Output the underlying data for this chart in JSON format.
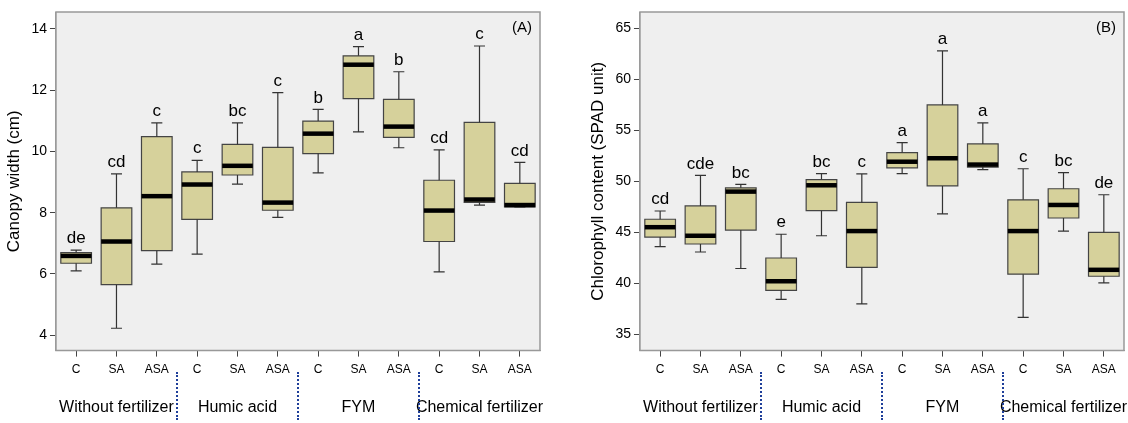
{
  "chart_data": [
    {
      "type": "box",
      "title": "(A)",
      "ylabel": "Canopy width (cm)",
      "categories": [
        "C",
        "SA",
        "ASA",
        "C",
        "SA",
        "ASA",
        "C",
        "SA",
        "ASA",
        "C",
        "SA",
        "ASA"
      ],
      "color": "#d6d19b",
      "ylim": [
        3.5,
        14.55
      ],
      "yticks": [
        4,
        6,
        8,
        10,
        12,
        14
      ],
      "legend": false,
      "boxes": [
        {
          "low": 6.1,
          "q1": 6.35,
          "median": 6.59,
          "q3": 6.7,
          "high": 6.78
        },
        {
          "low": 4.23,
          "q1": 5.65,
          "median": 7.06,
          "q3": 8.16,
          "high": 9.27
        },
        {
          "low": 6.32,
          "q1": 6.76,
          "median": 8.54,
          "q3": 10.48,
          "high": 10.93
        },
        {
          "low": 6.65,
          "q1": 7.78,
          "median": 8.92,
          "q3": 9.33,
          "high": 9.71
        },
        {
          "low": 8.93,
          "q1": 9.23,
          "median": 9.53,
          "q3": 10.23,
          "high": 10.93
        },
        {
          "low": 7.85,
          "q1": 8.08,
          "median": 8.33,
          "q3": 10.13,
          "high": 11.92
        },
        {
          "low": 9.3,
          "q1": 9.93,
          "median": 10.58,
          "q3": 10.99,
          "high": 11.37
        },
        {
          "low": 10.64,
          "q1": 11.72,
          "median": 12.83,
          "q3": 13.12,
          "high": 13.42
        },
        {
          "low": 10.12,
          "q1": 10.46,
          "median": 10.81,
          "q3": 11.7,
          "high": 12.6
        },
        {
          "low": 6.07,
          "q1": 7.06,
          "median": 8.07,
          "q3": 9.06,
          "high": 10.05
        },
        {
          "low": 8.25,
          "q1": 8.34,
          "median": 8.43,
          "q3": 10.95,
          "high": 13.44
        },
        {
          "low": 8.19,
          "q1": 8.19,
          "median": 8.25,
          "q3": 8.96,
          "high": 9.64
        }
      ],
      "annotations": [
        "Without fertilizer",
        "Humic acid",
        "FYM",
        "Chemical fertilizer",
        "de",
        "cd",
        "c",
        "c",
        "bc",
        "c",
        "b",
        "a",
        "b",
        "cd",
        "c",
        "cd"
      ]
    },
    {
      "type": "box",
      "title": "(B)",
      "ylabel": "Chlorophyll content (SPAD unit)",
      "categories": [
        "C",
        "SA",
        "ASA",
        "C",
        "SA",
        "ASA",
        "C",
        "SA",
        "ASA",
        "C",
        "SA",
        "ASA"
      ],
      "color": "#d6d19b",
      "ylim": [
        33.4,
        66.6
      ],
      "yticks": [
        35,
        40,
        45,
        50,
        55,
        60,
        65
      ],
      "legend": false,
      "boxes": [
        {
          "low": 43.6,
          "q1": 44.53,
          "median": 45.5,
          "q3": 46.28,
          "high": 47.09
        },
        {
          "low": 43.07,
          "q1": 43.85,
          "median": 44.66,
          "q3": 47.59,
          "high": 50.58
        },
        {
          "low": 41.45,
          "q1": 45.22,
          "median": 48.99,
          "q3": 49.36,
          "high": 49.7
        },
        {
          "low": 38.43,
          "q1": 39.3,
          "median": 40.2,
          "q3": 42.48,
          "high": 44.81
        },
        {
          "low": 44.66,
          "q1": 47.12,
          "median": 49.61,
          "q3": 50.17,
          "high": 50.76
        },
        {
          "low": 37.99,
          "q1": 41.57,
          "median": 45.12,
          "q3": 47.93,
          "high": 50.73
        },
        {
          "low": 50.76,
          "q1": 51.32,
          "median": 51.92,
          "q3": 52.82,
          "high": 53.79
        },
        {
          "low": 46.81,
          "q1": 49.55,
          "median": 52.26,
          "q3": 57.49,
          "high": 62.79
        },
        {
          "low": 51.14,
          "q1": 51.39,
          "median": 51.64,
          "q3": 53.66,
          "high": 55.72
        },
        {
          "low": 36.65,
          "q1": 40.89,
          "median": 45.12,
          "q3": 48.18,
          "high": 51.23
        },
        {
          "low": 45.12,
          "q1": 46.4,
          "median": 47.68,
          "q3": 49.27,
          "high": 50.86
        },
        {
          "low": 40.05,
          "q1": 40.69,
          "median": 41.32,
          "q3": 45.0,
          "high": 48.68
        }
      ],
      "annotations": [
        "Without fertilizer",
        "Humic acid",
        "FYM",
        "Chemical fertilizer",
        "cd",
        "cde",
        "bc",
        "e",
        "bc",
        "c",
        "a",
        "a",
        "a",
        "c",
        "bc",
        "de"
      ]
    }
  ]
}
